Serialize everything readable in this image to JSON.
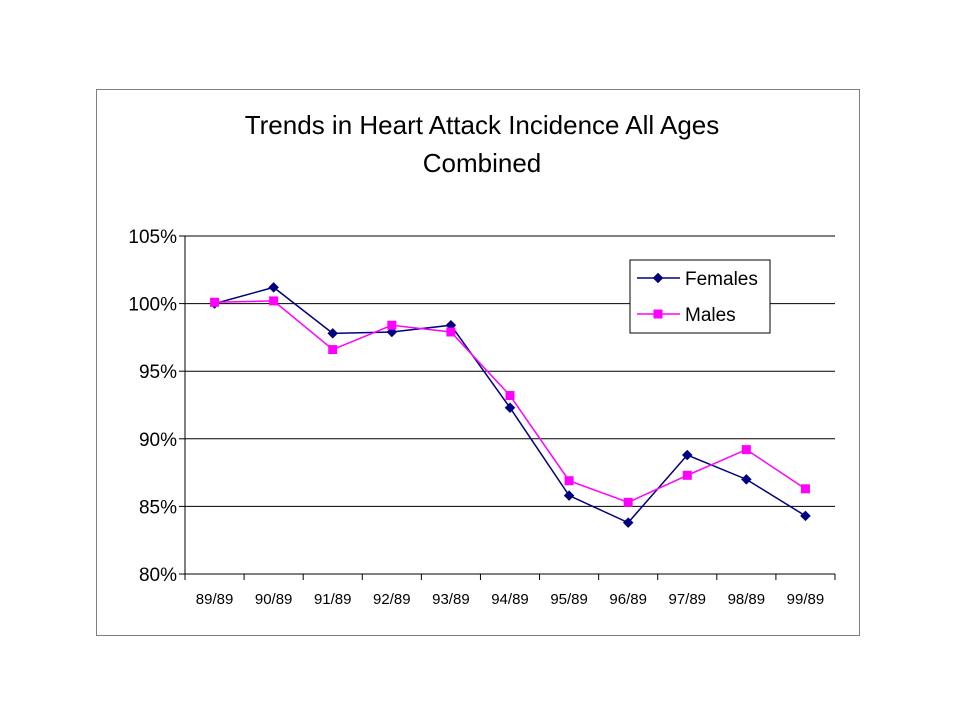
{
  "chart_data": {
    "type": "line",
    "title_lines": [
      "Trends in Heart Attack Incidence All Ages",
      "Combined"
    ],
    "xlabel": "",
    "ylabel": "",
    "categories": [
      "89/89",
      "90/89",
      "91/89",
      "92/89",
      "93/89",
      "94/89",
      "95/89",
      "96/89",
      "97/89",
      "98/89",
      "99/89"
    ],
    "ylim": [
      80,
      105
    ],
    "yticks": [
      80,
      85,
      90,
      95,
      100,
      105
    ],
    "ytick_labels": [
      "80%",
      "85%",
      "90%",
      "95%",
      "100%",
      "105%"
    ],
    "grid": true,
    "legend_position": "top-right",
    "series": [
      {
        "name": "Females",
        "marker": "diamond",
        "color": "#000080",
        "values": [
          100.0,
          101.2,
          97.8,
          97.9,
          98.4,
          92.3,
          85.8,
          83.8,
          88.8,
          87.0,
          84.3
        ]
      },
      {
        "name": "Males",
        "marker": "square",
        "color": "#ff00ff",
        "values": [
          100.1,
          100.2,
          96.6,
          98.4,
          97.9,
          93.2,
          86.9,
          85.3,
          87.3,
          89.2,
          86.3
        ]
      }
    ]
  }
}
